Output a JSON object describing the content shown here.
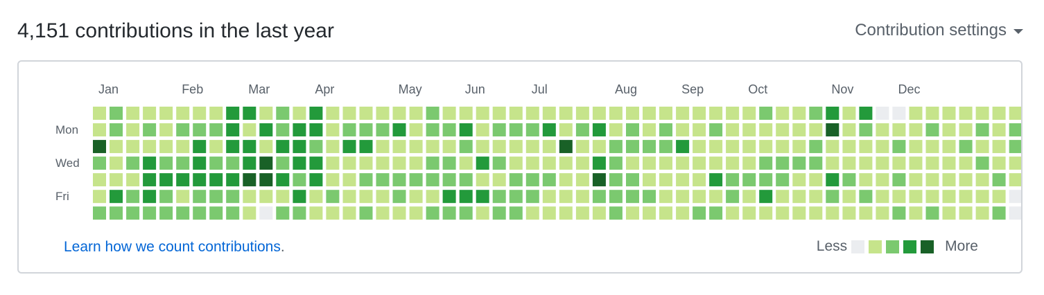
{
  "header": {
    "title": "4,151 contributions in the last year",
    "settings_label": "Contribution settings",
    "settings_icon": "caret-down-icon"
  },
  "months": [
    {
      "label": "Jan",
      "week": 1
    },
    {
      "label": "Feb",
      "week": 6
    },
    {
      "label": "Mar",
      "week": 10
    },
    {
      "label": "Apr",
      "week": 14
    },
    {
      "label": "May",
      "week": 19
    },
    {
      "label": "Jun",
      "week": 23
    },
    {
      "label": "Jul",
      "week": 27
    },
    {
      "label": "Aug",
      "week": 32
    },
    {
      "label": "Sep",
      "week": 36
    },
    {
      "label": "Oct",
      "week": 40
    },
    {
      "label": "Nov",
      "week": 45
    },
    {
      "label": "Dec",
      "week": 49
    }
  ],
  "weekdays": [
    {
      "label": "Mon",
      "row": 1
    },
    {
      "label": "Wed",
      "row": 3
    },
    {
      "label": "Fri",
      "row": 5
    }
  ],
  "colors": [
    "#ebedf0",
    "#c6e48b",
    "#7bc96f",
    "#239a3b",
    "#196127"
  ],
  "levels": [
    "1211111133121311111121111111111111111111211231300111111111",
    "1212122231323312223122312223123121211211111141211121121211",
    "4111113133133213311111211111411222231111111211112111211211",
    "2123223223423311111122132111113211111111222211111111121111",
    "1113333334432311222222211222114221111322221132112111112121",
    "1323212221113121112113332221112222111121311121211111111011",
    "2222222221022111211122212211111211112211111111112121112011"
  ],
  "footer": {
    "link_text": "Learn how we count contributions",
    "link_suffix": "."
  },
  "legend": {
    "less": "Less",
    "more": "More"
  }
}
